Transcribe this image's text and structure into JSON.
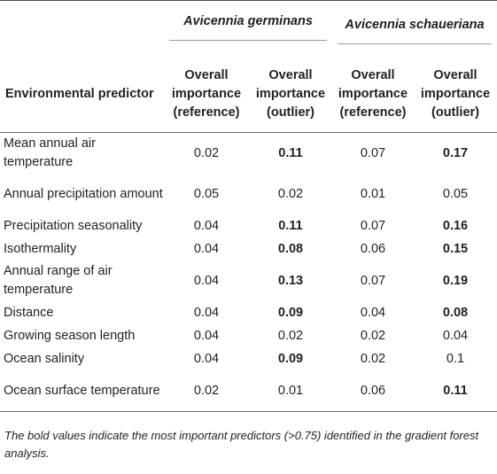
{
  "table": {
    "species": [
      "Avicennia germinans",
      "Avicennia schaueriana"
    ],
    "header_predictor": "Environmental predictor",
    "subheaders": [
      [
        "Overall",
        "importance",
        "(reference)"
      ],
      [
        "Overall",
        "importance",
        "(outlier)"
      ],
      [
        "Overall",
        "importance",
        "(reference)"
      ],
      [
        "Overall",
        "importance",
        "(outlier)"
      ]
    ],
    "rows": [
      {
        "name": "Mean annual air temperature",
        "values": [
          "0.02",
          "0.11",
          "0.07",
          "0.17"
        ],
        "bold": [
          false,
          true,
          false,
          true
        ]
      },
      {
        "name": "Annual precipitation amount",
        "values": [
          "0.05",
          "0.02",
          "0.01",
          "0.05"
        ],
        "bold": [
          false,
          false,
          false,
          false
        ]
      },
      {
        "name": "Precipitation seasonality",
        "values": [
          "0.04",
          "0.11",
          "0.07",
          "0.16"
        ],
        "bold": [
          false,
          true,
          false,
          true
        ]
      },
      {
        "name": "Isothermality",
        "values": [
          "0.04",
          "0.08",
          "0.06",
          "0.15"
        ],
        "bold": [
          false,
          true,
          false,
          true
        ]
      },
      {
        "name": "Annual range of air temperature",
        "values": [
          "0.04",
          "0.13",
          "0.07",
          "0.19"
        ],
        "bold": [
          false,
          true,
          false,
          true
        ]
      },
      {
        "name": "Distance",
        "values": [
          "0.04",
          "0.09",
          "0.04",
          "0.08"
        ],
        "bold": [
          false,
          true,
          false,
          true
        ]
      },
      {
        "name": "Growing season length",
        "values": [
          "0.04",
          "0.02",
          "0.02",
          "0.04"
        ],
        "bold": [
          false,
          false,
          false,
          false
        ]
      },
      {
        "name": "Ocean salinity",
        "values": [
          "0.04",
          "0.09",
          "0.02",
          "0.1"
        ],
        "bold": [
          false,
          true,
          false,
          false
        ]
      },
      {
        "name": "Ocean surface temperature",
        "values": [
          "0.02",
          "0.01",
          "0.06",
          "0.11"
        ],
        "bold": [
          false,
          false,
          false,
          true
        ]
      }
    ]
  },
  "footnote": "The bold values indicate the most important predictors (>0.75) identified in the gradient forest analysis."
}
